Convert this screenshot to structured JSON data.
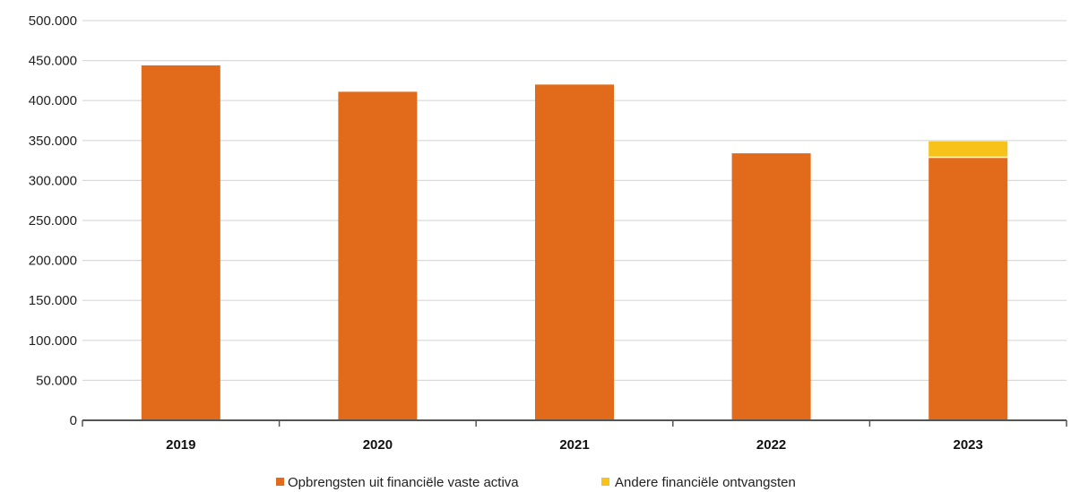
{
  "chart_data": {
    "type": "bar",
    "stacked": true,
    "categories": [
      "2019",
      "2020",
      "2021",
      "2022",
      "2023"
    ],
    "series": [
      {
        "name": "Opbrengsten uit financiële vaste activa",
        "values": [
          444000,
          411000,
          420000,
          334000,
          329000
        ],
        "color": "#E26A1B"
      },
      {
        "name": "Andere financiële ontvangsten",
        "values": [
          0,
          0,
          0,
          0,
          20000
        ],
        "color": "#F7C31A"
      }
    ],
    "y_ticks": [
      "0",
      "50.000",
      "100.000",
      "150.000",
      "200.000",
      "250.000",
      "300.000",
      "350.000",
      "400.000",
      "450.000",
      "500.000"
    ],
    "ylim": [
      0,
      500000
    ],
    "grid": true,
    "legend_position": "bottom"
  }
}
